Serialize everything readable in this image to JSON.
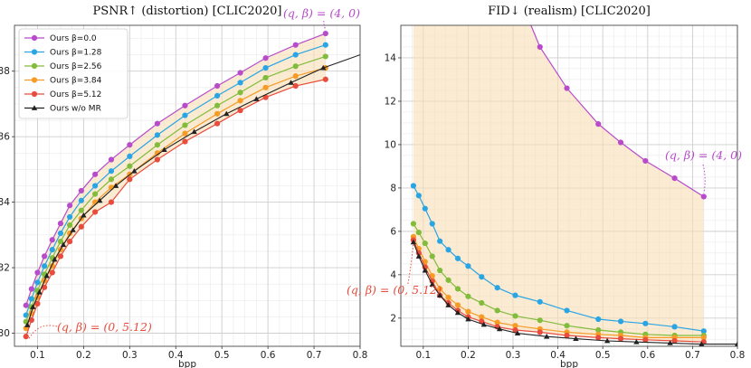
{
  "chart_data": [
    {
      "type": "line",
      "title": "PSNR↑ (distortion) [CLIC2020]",
      "xlabel": "bpp",
      "ylabel": "",
      "xlim": [
        0.05,
        0.8
      ],
      "ylim": [
        29.6,
        39.4
      ],
      "xticks": [
        0.1,
        0.2,
        0.3,
        0.4,
        0.5,
        0.6,
        0.7,
        0.8
      ],
      "xtick_labels": [
        "0.1",
        "0.2",
        "0.3",
        "0.4",
        "0.5",
        "0.6",
        "0.7",
        "0.8"
      ],
      "yticks": [
        30,
        32,
        34,
        36,
        38
      ],
      "ytick_labels": [
        "30",
        "32",
        "34",
        "36",
        "38"
      ],
      "grid": true,
      "legend_position": "top-left",
      "shade_between": [
        "Ours β=0.0",
        "Ours β=5.12"
      ],
      "series": [
        {
          "name": "Ours β=0.0",
          "color": "#b84bcb",
          "marker": "circle",
          "x": [
            0.075,
            0.087,
            0.1,
            0.115,
            0.132,
            0.15,
            0.17,
            0.195,
            0.225,
            0.26,
            0.3,
            0.36,
            0.42,
            0.49,
            0.54,
            0.595,
            0.66,
            0.725
          ],
          "y": [
            30.85,
            31.35,
            31.85,
            32.35,
            32.85,
            33.35,
            33.9,
            34.35,
            34.85,
            35.3,
            35.75,
            36.4,
            36.95,
            37.55,
            37.95,
            38.4,
            38.8,
            39.15
          ]
        },
        {
          "name": "Ours β=1.28",
          "color": "#2aa5e4",
          "marker": "circle",
          "x": [
            0.075,
            0.087,
            0.1,
            0.115,
            0.132,
            0.15,
            0.17,
            0.195,
            0.225,
            0.26,
            0.3,
            0.36,
            0.42,
            0.49,
            0.54,
            0.595,
            0.66,
            0.725
          ],
          "y": [
            30.55,
            31.05,
            31.55,
            32.05,
            32.55,
            33.05,
            33.55,
            34.05,
            34.5,
            34.95,
            35.4,
            36.05,
            36.65,
            37.25,
            37.65,
            38.1,
            38.5,
            38.8
          ]
        },
        {
          "name": "Ours β=2.56",
          "color": "#82bc3c",
          "marker": "circle",
          "x": [
            0.075,
            0.087,
            0.1,
            0.115,
            0.132,
            0.15,
            0.17,
            0.195,
            0.225,
            0.26,
            0.3,
            0.36,
            0.42,
            0.49,
            0.54,
            0.595,
            0.66,
            0.725
          ],
          "y": [
            30.35,
            30.8,
            31.3,
            31.8,
            32.3,
            32.8,
            33.3,
            33.75,
            34.25,
            34.7,
            35.1,
            35.75,
            36.35,
            36.95,
            37.35,
            37.8,
            38.15,
            38.45
          ]
        },
        {
          "name": "Ours β=3.84",
          "color": "#f59b26",
          "marker": "circle",
          "x": [
            0.075,
            0.087,
            0.1,
            0.115,
            0.132,
            0.15,
            0.17,
            0.195,
            0.225,
            0.26,
            0.3,
            0.36,
            0.42,
            0.49,
            0.54,
            0.595,
            0.66,
            0.725
          ],
          "y": [
            30.15,
            30.6,
            31.1,
            31.6,
            32.05,
            32.55,
            33.05,
            33.5,
            34.0,
            34.45,
            34.85,
            35.5,
            36.1,
            36.7,
            37.1,
            37.5,
            37.85,
            38.1
          ]
        },
        {
          "name": "Ours β=5.12",
          "color": "#e84c3d",
          "marker": "circle",
          "x": [
            0.075,
            0.087,
            0.1,
            0.115,
            0.132,
            0.15,
            0.17,
            0.195,
            0.225,
            0.26,
            0.3,
            0.36,
            0.42,
            0.49,
            0.54,
            0.595,
            0.66,
            0.725
          ],
          "y": [
            29.9,
            30.4,
            30.9,
            31.4,
            31.85,
            32.35,
            32.8,
            33.25,
            33.7,
            34.0,
            34.7,
            35.3,
            35.85,
            36.4,
            36.8,
            37.2,
            37.55,
            37.75
          ]
        },
        {
          "name": "Ours w/o MR",
          "color": "#222222",
          "marker": "triangle",
          "x": [
            0.078,
            0.09,
            0.104,
            0.12,
            0.137,
            0.156,
            0.177,
            0.2,
            0.235,
            0.27,
            0.31,
            0.375,
            0.44,
            0.51,
            0.575,
            0.65,
            0.72,
            0.8
          ],
          "y": [
            30.25,
            30.8,
            31.25,
            31.75,
            32.25,
            32.7,
            33.15,
            33.6,
            34.05,
            34.5,
            34.95,
            35.6,
            36.15,
            36.7,
            37.15,
            37.65,
            38.1,
            38.5
          ]
        }
      ],
      "annotations": [
        {
          "text": "(q,β) = (4,0)",
          "color": "#b84bcb"
        },
        {
          "text": "(q,β) = (0,5.12)",
          "color": "#e84c3d"
        }
      ]
    },
    {
      "type": "line",
      "title": "FID↓ (realism) [CLIC2020]",
      "xlabel": "bpp",
      "ylabel": "",
      "xlim": [
        0.05,
        0.8
      ],
      "ylim": [
        0.7,
        15.5
      ],
      "xticks": [
        0.1,
        0.2,
        0.3,
        0.4,
        0.5,
        0.6,
        0.7,
        0.8
      ],
      "xtick_labels": [
        "0.1",
        "0.2",
        "0.3",
        "0.4",
        "0.5",
        "0.6",
        "0.7",
        "0.8"
      ],
      "yticks": [
        2,
        4,
        6,
        8,
        10,
        12,
        14
      ],
      "ytick_labels": [
        "2",
        "4",
        "6",
        "8",
        "10",
        "12",
        "14"
      ],
      "grid": true,
      "shade_between": [
        "Ours β=0.0",
        "Ours β=5.12"
      ],
      "series": [
        {
          "name": "Ours β=0.0",
          "color": "#b84bcb",
          "marker": "circle",
          "x": [
            0.36,
            0.42,
            0.49,
            0.54,
            0.595,
            0.66,
            0.725
          ],
          "y": [
            14.5,
            12.6,
            10.95,
            10.1,
            9.25,
            8.45,
            7.6
          ],
          "line_extends_above_to": {
            "x": 0.3,
            "y": 17.5
          }
        },
        {
          "name": "Ours β=1.28",
          "color": "#2aa5e4",
          "marker": "circle",
          "x": [
            0.078,
            0.09,
            0.104,
            0.12,
            0.137,
            0.156,
            0.177,
            0.2,
            0.23,
            0.265,
            0.305,
            0.36,
            0.42,
            0.49,
            0.54,
            0.595,
            0.66,
            0.725
          ],
          "y": [
            8.1,
            7.65,
            7.05,
            6.35,
            5.55,
            5.15,
            4.75,
            4.4,
            3.9,
            3.4,
            3.05,
            2.75,
            2.35,
            1.95,
            1.85,
            1.75,
            1.6,
            1.4
          ]
        },
        {
          "name": "Ours β=2.56",
          "color": "#82bc3c",
          "marker": "circle",
          "x": [
            0.078,
            0.09,
            0.104,
            0.12,
            0.137,
            0.156,
            0.177,
            0.2,
            0.23,
            0.265,
            0.305,
            0.36,
            0.42,
            0.49,
            0.54,
            0.595,
            0.66,
            0.725
          ],
          "y": [
            6.35,
            5.95,
            5.45,
            4.85,
            4.2,
            3.75,
            3.35,
            3.0,
            2.7,
            2.35,
            2.1,
            1.9,
            1.65,
            1.45,
            1.35,
            1.25,
            1.2,
            1.2
          ]
        },
        {
          "name": "Ours β=3.84",
          "color": "#f59b26",
          "marker": "circle",
          "x": [
            0.078,
            0.09,
            0.104,
            0.12,
            0.137,
            0.156,
            0.177,
            0.2,
            0.23,
            0.265,
            0.305,
            0.36,
            0.42,
            0.49,
            0.54,
            0.595,
            0.66,
            0.725
          ],
          "y": [
            5.75,
            5.2,
            4.6,
            3.95,
            3.35,
            2.95,
            2.6,
            2.3,
            2.05,
            1.8,
            1.65,
            1.5,
            1.35,
            1.25,
            1.2,
            1.1,
            1.1,
            1.1
          ]
        },
        {
          "name": "Ours β=5.12",
          "color": "#e84c3d",
          "marker": "circle",
          "x": [
            0.078,
            0.09,
            0.104,
            0.12,
            0.137,
            0.156,
            0.177,
            0.2,
            0.23,
            0.265,
            0.305,
            0.36,
            0.42,
            0.49,
            0.54,
            0.595,
            0.66,
            0.725
          ],
          "y": [
            5.6,
            5.0,
            4.35,
            3.7,
            3.05,
            2.7,
            2.35,
            2.05,
            1.85,
            1.6,
            1.45,
            1.35,
            1.2,
            1.1,
            1.05,
            1.0,
            0.95,
            0.9
          ]
        },
        {
          "name": "Ours w/o MR",
          "color": "#222222",
          "marker": "triangle",
          "x": [
            0.078,
            0.09,
            0.104,
            0.12,
            0.137,
            0.156,
            0.177,
            0.2,
            0.235,
            0.27,
            0.31,
            0.375,
            0.44,
            0.51,
            0.575,
            0.65,
            0.72,
            0.8
          ],
          "y": [
            5.5,
            4.85,
            4.2,
            3.55,
            3.05,
            2.6,
            2.25,
            1.95,
            1.7,
            1.5,
            1.3,
            1.15,
            1.05,
            0.95,
            0.9,
            0.85,
            0.8,
            0.8
          ]
        }
      ],
      "annotations": [
        {
          "text": "(q,β) = (4,0)",
          "color": "#b84bcb"
        },
        {
          "text": "(q,β) = (0,5.12)",
          "color": "#e84c3d"
        }
      ]
    }
  ]
}
